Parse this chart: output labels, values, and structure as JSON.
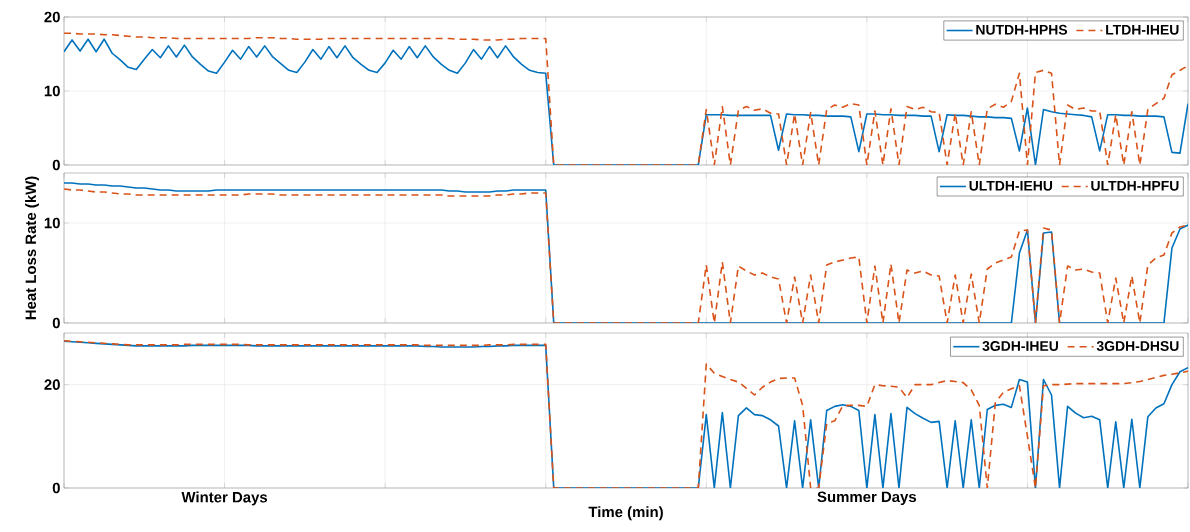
{
  "chart_data": [
    {
      "type": "line",
      "ylim": [
        0,
        20
      ],
      "yticks": [
        0,
        10,
        20
      ],
      "grid": true,
      "legend": "top right",
      "tick_labels": "y",
      "categories": [
        null,
        null,
        null,
        null,
        null,
        null,
        null,
        null,
        null,
        null,
        null,
        null,
        null,
        null,
        null,
        null,
        null,
        null,
        null,
        null,
        null,
        null,
        null,
        null,
        null,
        null,
        null,
        null,
        null,
        null,
        null,
        null,
        null,
        null,
        null,
        null,
        null,
        null,
        null,
        null,
        null,
        null,
        null,
        null,
        null,
        null,
        null,
        null,
        null,
        null,
        null,
        null,
        null,
        null,
        null,
        null,
        null,
        null,
        null,
        null,
        null,
        null,
        null,
        null,
        null,
        null,
        null,
        null,
        null,
        null,
        null,
        null,
        null,
        null,
        null,
        null,
        null,
        null,
        null,
        null,
        null,
        null,
        null,
        null,
        null,
        null,
        null,
        null,
        null,
        null,
        null,
        null,
        null,
        null,
        null,
        null,
        null,
        null,
        null,
        null,
        null,
        null,
        null,
        null,
        null,
        null,
        null,
        null,
        null,
        null,
        null,
        null,
        null,
        null,
        null,
        null,
        null,
        null,
        null,
        null,
        null,
        null,
        null,
        null,
        null,
        null,
        null,
        null,
        null,
        null,
        null,
        null,
        null,
        null,
        null,
        null,
        null,
        null,
        null,
        null,
        null
      ],
      "series": [
        {
          "name": "NUTDH-HPHS",
          "color": "#0072bd",
          "line_style": "solid",
          "values": [
            15.3,
            16.9,
            15.4,
            17.0,
            15.3,
            17.0,
            15.1,
            14.2,
            13.2,
            12.9,
            14.3,
            15.6,
            14.5,
            16.1,
            14.6,
            16.2,
            14.6,
            13.6,
            12.7,
            12.4,
            13.9,
            15.5,
            14.3,
            16.0,
            14.6,
            16.1,
            14.6,
            13.7,
            12.8,
            12.5,
            13.9,
            15.6,
            14.3,
            16.0,
            14.5,
            16.1,
            14.5,
            13.6,
            12.8,
            12.5,
            13.8,
            15.5,
            14.3,
            16.0,
            14.5,
            16.1,
            14.6,
            13.6,
            12.8,
            12.4,
            13.8,
            15.6,
            14.3,
            16.0,
            14.5,
            16.1,
            14.6,
            13.6,
            12.8,
            12.5,
            12.4,
            0,
            0,
            0,
            0,
            0,
            0,
            0,
            0,
            0,
            0,
            0,
            0,
            0,
            0,
            0,
            0,
            0,
            0,
            0,
            6.8,
            6.8,
            6.8,
            6.7,
            6.7,
            6.7,
            6.7,
            6.7,
            6.7,
            2.0,
            6.9,
            6.8,
            6.8,
            6.7,
            6.7,
            6.6,
            6.6,
            6.6,
            6.5,
            1.8,
            6.9,
            6.9,
            6.8,
            6.8,
            6.7,
            6.7,
            6.7,
            6.6,
            6.6,
            1.8,
            6.8,
            6.7,
            6.7,
            6.6,
            6.5,
            6.5,
            6.4,
            6.4,
            6.3,
            1.9,
            7.7,
            0,
            7.5,
            7.2,
            7.0,
            6.9,
            6.8,
            6.7,
            6.5,
            1.9,
            6.8,
            6.8,
            6.7,
            6.7,
            6.6,
            6.6,
            6.6,
            6.5,
            1.7,
            1.6,
            8.3
          ]
        },
        {
          "name": "LTDH-IHEU",
          "color": "#d95319",
          "line_style": "dashed",
          "values": [
            17.8,
            17.8,
            17.7,
            17.7,
            17.7,
            17.6,
            17.6,
            17.5,
            17.4,
            17.3,
            17.3,
            17.2,
            17.2,
            17.2,
            17.1,
            17.1,
            17.1,
            17.1,
            17.1,
            17.1,
            17.1,
            17.1,
            17.1,
            17.1,
            17.2,
            17.2,
            17.2,
            17.1,
            17.1,
            17.0,
            17.0,
            17.0,
            17.0,
            17.1,
            17.1,
            17.1,
            17.1,
            17.1,
            17.1,
            17.1,
            17.1,
            17.1,
            17.1,
            17.1,
            17.1,
            17.1,
            17.1,
            17.1,
            17.1,
            17.0,
            17.0,
            17.0,
            16.9,
            16.9,
            16.9,
            17.0,
            17.0,
            17.1,
            17.1,
            17.1,
            17.1,
            0,
            null,
            null,
            null,
            null,
            null,
            null,
            null,
            null,
            null,
            null,
            null,
            null,
            null,
            null,
            null,
            null,
            null,
            0,
            7.5,
            0,
            7.9,
            0,
            7.4,
            7.9,
            7.4,
            7.6,
            7.0,
            6.9,
            0,
            6.9,
            0,
            7.1,
            0,
            7.5,
            8.1,
            7.8,
            8.3,
            8.1,
            0,
            7.3,
            0,
            7.6,
            0,
            7.9,
            7.5,
            7.8,
            7.2,
            7.1,
            0,
            7.0,
            0,
            7.2,
            0,
            7.6,
            8.2,
            7.8,
            8.6,
            12.4,
            0,
            12.5,
            12.8,
            12.4,
            0,
            8.1,
            7.5,
            7.7,
            7.3,
            7.3,
            0,
            6.8,
            0,
            7.2,
            0,
            7.5,
            8.3,
            9.0,
            12.2,
            12.8,
            13.4
          ]
        }
      ]
    },
    {
      "type": "line",
      "ylim": [
        0,
        15
      ],
      "yticks": [
        0,
        10
      ],
      "grid": true,
      "legend": "top right",
      "tick_labels": "y",
      "ylabel": "Heat Loss Rate (kW)",
      "categories": [
        null,
        null,
        null,
        null,
        null,
        null,
        null,
        null,
        null,
        null,
        null,
        null,
        null,
        null,
        null,
        null,
        null,
        null,
        null,
        null,
        null,
        null,
        null,
        null,
        null,
        null,
        null,
        null,
        null,
        null,
        null,
        null,
        null,
        null,
        null,
        null,
        null,
        null,
        null,
        null,
        null,
        null,
        null,
        null,
        null,
        null,
        null,
        null,
        null,
        null,
        null,
        null,
        null,
        null,
        null,
        null,
        null,
        null,
        null,
        null,
        null,
        null,
        null,
        null,
        null,
        null,
        null,
        null,
        null,
        null,
        null,
        null,
        null,
        null,
        null,
        null,
        null,
        null,
        null,
        null,
        null,
        null,
        null,
        null,
        null,
        null,
        null,
        null,
        null,
        null,
        null,
        null,
        null,
        null,
        null,
        null,
        null,
        null,
        null,
        null,
        null,
        null,
        null,
        null,
        null,
        null,
        null,
        null,
        null,
        null,
        null,
        null,
        null,
        null,
        null,
        null,
        null,
        null,
        null,
        null,
        null,
        null,
        null,
        null,
        null,
        null,
        null,
        null,
        null,
        null,
        null,
        null,
        null,
        null,
        null,
        null,
        null,
        null,
        null,
        null,
        null
      ],
      "series": [
        {
          "name": "ULTDH-IEHU",
          "color": "#0072bd",
          "line_style": "solid",
          "values": [
            14.0,
            14.0,
            13.9,
            13.9,
            13.8,
            13.8,
            13.7,
            13.7,
            13.6,
            13.5,
            13.5,
            13.4,
            13.3,
            13.3,
            13.2,
            13.2,
            13.2,
            13.2,
            13.2,
            13.3,
            13.3,
            13.3,
            13.3,
            13.3,
            13.3,
            13.3,
            13.3,
            13.3,
            13.3,
            13.3,
            13.3,
            13.3,
            13.3,
            13.3,
            13.3,
            13.3,
            13.3,
            13.3,
            13.3,
            13.3,
            13.3,
            13.3,
            13.3,
            13.3,
            13.3,
            13.3,
            13.3,
            13.3,
            13.2,
            13.2,
            13.1,
            13.1,
            13.1,
            13.1,
            13.2,
            13.2,
            13.3,
            13.3,
            13.3,
            13.3,
            13.3,
            0,
            0,
            0,
            0,
            0,
            0,
            0,
            0,
            0,
            0,
            0,
            0,
            0,
            0,
            0,
            0,
            0,
            0,
            0,
            0,
            0,
            0,
            0,
            0,
            0,
            0,
            0,
            0,
            0,
            0,
            0,
            0,
            0,
            0,
            0,
            0,
            0,
            0,
            0,
            0,
            0,
            0,
            0,
            0,
            0,
            0,
            0,
            0,
            0,
            0,
            0,
            0,
            0,
            0,
            0,
            0,
            0,
            0,
            7.0,
            9.3,
            0,
            9.0,
            9.1,
            0,
            0,
            0,
            0,
            0,
            0,
            0,
            0,
            0,
            0,
            0,
            0,
            0,
            0,
            7.5,
            9.4,
            9.8
          ]
        },
        {
          "name": "ULTDH-HPFU",
          "color": "#d95319",
          "line_style": "dashed",
          "values": [
            13.4,
            13.3,
            13.3,
            13.2,
            13.1,
            13.1,
            13.0,
            12.9,
            12.9,
            12.8,
            12.8,
            12.8,
            12.8,
            12.8,
            12.8,
            12.8,
            12.8,
            12.8,
            12.8,
            12.8,
            12.8,
            12.8,
            12.8,
            12.9,
            12.9,
            12.9,
            12.9,
            12.8,
            12.8,
            12.8,
            12.8,
            12.8,
            12.8,
            12.8,
            12.8,
            12.8,
            12.8,
            12.8,
            12.8,
            12.8,
            12.8,
            12.8,
            12.8,
            12.8,
            12.8,
            12.8,
            12.8,
            12.8,
            12.7,
            12.7,
            12.7,
            12.7,
            12.7,
            12.7,
            12.8,
            12.8,
            12.9,
            12.9,
            13.0,
            13.0,
            13.0,
            0,
            null,
            null,
            null,
            null,
            null,
            null,
            null,
            null,
            null,
            null,
            null,
            null,
            null,
            null,
            null,
            null,
            null,
            0,
            5.8,
            0,
            6.1,
            0,
            5.7,
            5.2,
            4.8,
            5.0,
            4.6,
            4.4,
            0,
            4.6,
            0,
            4.8,
            0,
            5.8,
            6.1,
            6.3,
            6.5,
            6.6,
            0,
            5.7,
            0,
            5.9,
            0,
            5.3,
            5.0,
            5.2,
            4.8,
            4.7,
            0,
            4.8,
            0,
            4.9,
            0,
            5.4,
            6.0,
            6.3,
            6.6,
            9.2,
            9.3,
            0,
            9.5,
            9.3,
            0,
            5.7,
            5.3,
            5.4,
            5.1,
            5.0,
            0,
            4.5,
            0,
            4.7,
            0,
            5.8,
            6.5,
            6.8,
            9.0,
            9.6,
            9.8
          ]
        }
      ]
    },
    {
      "type": "line",
      "ylim": [
        0,
        30
      ],
      "yticks": [
        0,
        20
      ],
      "grid": true,
      "legend": "top right",
      "xlabel": "Time (min)",
      "categories": [
        null,
        null,
        null,
        null,
        null,
        null,
        null,
        null,
        null,
        null,
        null,
        null,
        null,
        null,
        null,
        null,
        null,
        null,
        null,
        null,
        "Winter Days",
        null,
        null,
        null,
        null,
        null,
        null,
        null,
        null,
        null,
        null,
        null,
        null,
        null,
        null,
        null,
        null,
        null,
        null,
        null,
        null,
        null,
        null,
        null,
        null,
        null,
        null,
        null,
        null,
        null,
        null,
        null,
        null,
        null,
        null,
        null,
        null,
        null,
        null,
        null,
        null,
        null,
        null,
        null,
        null,
        null,
        null,
        null,
        null,
        null,
        null,
        null,
        null,
        null,
        null,
        null,
        null,
        null,
        null,
        null,
        null,
        null,
        null,
        null,
        null,
        null,
        null,
        null,
        null,
        null,
        null,
        null,
        null,
        null,
        null,
        null,
        null,
        null,
        null,
        null,
        "Summer Days",
        null,
        null,
        null,
        null,
        null,
        null,
        null,
        null,
        null,
        null,
        null,
        null,
        null,
        null,
        null,
        null,
        null,
        null,
        null,
        null,
        null,
        null,
        null,
        null,
        null,
        null,
        null,
        null,
        null,
        null,
        null,
        null,
        null,
        null,
        null,
        null,
        null,
        null,
        null,
        null
      ],
      "series": [
        {
          "name": "3GDH-IHEU",
          "color": "#0072bd",
          "line_style": "solid",
          "values": [
            28.4,
            28.3,
            28.2,
            28.1,
            28.0,
            27.9,
            27.8,
            27.7,
            27.6,
            27.5,
            27.5,
            27.5,
            27.5,
            27.5,
            27.5,
            27.5,
            27.6,
            27.6,
            27.6,
            27.6,
            27.6,
            27.6,
            27.6,
            27.6,
            27.5,
            27.5,
            27.5,
            27.5,
            27.5,
            27.5,
            27.5,
            27.5,
            27.5,
            27.5,
            27.5,
            27.5,
            27.5,
            27.5,
            27.5,
            27.5,
            27.5,
            27.5,
            27.5,
            27.5,
            27.5,
            27.4,
            27.4,
            27.3,
            27.3,
            27.3,
            27.3,
            27.3,
            27.4,
            27.4,
            27.5,
            27.5,
            27.6,
            27.6,
            27.6,
            27.6,
            27.6,
            0,
            0,
            0,
            0,
            0,
            0,
            0,
            0,
            0,
            0,
            0,
            0,
            0,
            0,
            0,
            0,
            0,
            0,
            0,
            14.2,
            0,
            14.6,
            0,
            14.0,
            15.5,
            14.2,
            14.0,
            13.2,
            12.0,
            0,
            13.0,
            0,
            13.2,
            0,
            15.0,
            15.8,
            16.1,
            15.8,
            15.0,
            0,
            14.2,
            0,
            14.4,
            0,
            15.6,
            14.4,
            13.5,
            12.7,
            12.9,
            0,
            13.0,
            0,
            13.2,
            0,
            15.2,
            16.0,
            16.2,
            15.6,
            21.0,
            20.5,
            0,
            21.0,
            18.0,
            0,
            15.8,
            14.5,
            13.6,
            13.9,
            13.2,
            0,
            12.8,
            0,
            13.3,
            0,
            13.8,
            15.5,
            16.3,
            20.0,
            22.5,
            23.3
          ]
        },
        {
          "name": "3GDH-DHSU",
          "color": "#d95319",
          "line_style": "dashed",
          "values": [
            28.5,
            28.4,
            28.3,
            28.2,
            28.1,
            28.0,
            27.9,
            27.8,
            27.7,
            27.7,
            27.7,
            27.7,
            27.7,
            27.7,
            27.7,
            27.8,
            27.8,
            27.8,
            27.8,
            27.8,
            27.8,
            27.8,
            27.8,
            27.7,
            27.7,
            27.7,
            27.7,
            27.7,
            27.7,
            27.7,
            27.7,
            27.7,
            27.7,
            27.7,
            27.7,
            27.7,
            27.7,
            27.7,
            27.7,
            27.7,
            27.7,
            27.7,
            27.7,
            27.7,
            27.7,
            27.6,
            27.6,
            27.6,
            27.6,
            27.6,
            27.6,
            27.6,
            27.6,
            27.7,
            27.7,
            27.7,
            27.8,
            27.8,
            27.8,
            27.8,
            27.8,
            0,
            null,
            null,
            null,
            null,
            null,
            null,
            null,
            null,
            null,
            null,
            null,
            null,
            null,
            null,
            null,
            null,
            null,
            0,
            24.0,
            22.2,
            21.6,
            21.0,
            20.5,
            19.3,
            18.0,
            19.5,
            20.5,
            21.2,
            21.3,
            21.3,
            16.0,
            0,
            0,
            12.5,
            13.0,
            15.9,
            16.0,
            16.0,
            15.8,
            20.0,
            19.8,
            19.7,
            19.5,
            17.5,
            20.0,
            20.0,
            20.0,
            20.4,
            20.8,
            20.6,
            20.4,
            19.0,
            16.0,
            0,
            16.5,
            18.5,
            19.2,
            19.8,
            10,
            0,
            19.8,
            20.0,
            20.0,
            20.1,
            20.2,
            20.2,
            20.2,
            20.2,
            20.2,
            20.2,
            20.2,
            20.4,
            20.6,
            21.0,
            21.4,
            21.8,
            22.0,
            22.3,
            22.6
          ]
        }
      ]
    }
  ]
}
